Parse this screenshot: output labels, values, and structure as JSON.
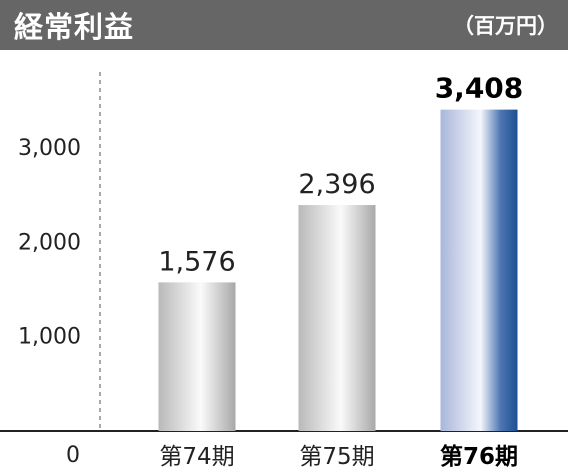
{
  "header": {
    "title": "経常利益",
    "unit": "（百万円）"
  },
  "chart_data": {
    "type": "bar",
    "title": "経常利益",
    "ylabel": "（百万円）",
    "categories": [
      "第74期",
      "第75期",
      "第76期"
    ],
    "values": [
      1576,
      2396,
      3408
    ],
    "value_labels": [
      "1,576",
      "2,396",
      "3,408"
    ],
    "highlight_index": 2,
    "ylim": [
      0,
      3600
    ],
    "y_ticks": [
      0,
      1000,
      2000,
      3000
    ],
    "y_tick_labels": [
      "0",
      "1,000",
      "2,000",
      "3,000"
    ],
    "grid": false,
    "colors": {
      "gray_bar": "#b8b8b8",
      "highlight_bar": "#2a5a98",
      "axis": "#222222"
    }
  }
}
